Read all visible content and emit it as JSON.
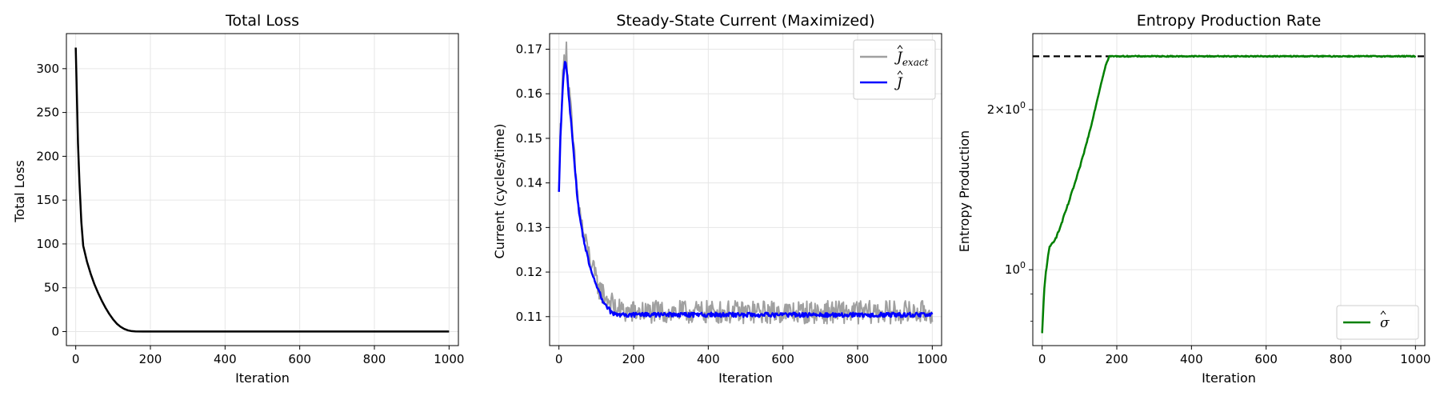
{
  "chart_data": [
    {
      "type": "line",
      "title": "Total Loss",
      "xlabel": "Iteration",
      "ylabel": "Total Loss",
      "xlim": [
        -25,
        1025
      ],
      "ylim": [
        -16,
        340
      ],
      "x_ticks": [
        0,
        200,
        400,
        600,
        800,
        1000
      ],
      "y_ticks": [
        0,
        50,
        100,
        150,
        200,
        250,
        300
      ],
      "grid": true,
      "series": [
        {
          "color": "#000000",
          "x": [
            0,
            3,
            6,
            10,
            15,
            20,
            30,
            40,
            50,
            60,
            70,
            80,
            90,
            100,
            110,
            120,
            130,
            140,
            150,
            160,
            180,
            200,
            300,
            400,
            500,
            600,
            700,
            800,
            900,
            1000
          ],
          "values": [
            324,
            270,
            215,
            170,
            125,
            98,
            80,
            66,
            54,
            44,
            35,
            27,
            20,
            14,
            9,
            5.5,
            3,
            1.4,
            0.5,
            0.2,
            0.1,
            0.05,
            0.05,
            0.05,
            0.05,
            0.05,
            0.05,
            0.05,
            0.05,
            0.05
          ]
        }
      ]
    },
    {
      "type": "line",
      "title": "Steady-State Current (Maximized)",
      "xlabel": "Iteration",
      "ylabel": "Current (cycles/time)",
      "xlim": [
        -25,
        1025
      ],
      "ylim": [
        0.1035,
        0.1735
      ],
      "x_ticks": [
        0,
        200,
        400,
        600,
        800,
        1000
      ],
      "y_ticks": [
        0.11,
        0.12,
        0.13,
        0.14,
        0.15,
        0.16,
        0.17
      ],
      "grid": true,
      "legend_position": "top-right",
      "series": [
        {
          "name_base": "J",
          "name_sub": "exact",
          "color": "#a0a0a0",
          "x": [
            0,
            4,
            8,
            12,
            16,
            20,
            24,
            30,
            40,
            50,
            60,
            70,
            80,
            90,
            100,
            110,
            120,
            130,
            140,
            150,
            160,
            180,
            200,
            250,
            300,
            400,
            500,
            600,
            700,
            800,
            900,
            1000
          ],
          "values": [
            0.138,
            0.152,
            0.16,
            0.166,
            0.168,
            0.171,
            0.163,
            0.158,
            0.147,
            0.137,
            0.131,
            0.127,
            0.124,
            0.121,
            0.118,
            0.116,
            0.115,
            0.114,
            0.113,
            0.112,
            0.1115,
            0.111,
            0.111,
            0.111,
            0.111,
            0.111,
            0.111,
            0.111,
            0.111,
            0.111,
            0.111,
            0.111
          ],
          "noise_amplitude": 0.0026
        },
        {
          "name_base": "J",
          "name_sub": "",
          "color": "#0000ff",
          "x": [
            0,
            4,
            8,
            12,
            16,
            20,
            24,
            30,
            40,
            50,
            60,
            70,
            80,
            90,
            100,
            110,
            120,
            130,
            140,
            150,
            160,
            180,
            200,
            250,
            300,
            400,
            500,
            600,
            700,
            800,
            900,
            1000
          ],
          "values": [
            0.138,
            0.15,
            0.158,
            0.164,
            0.167,
            0.166,
            0.162,
            0.156,
            0.146,
            0.136,
            0.13,
            0.126,
            0.122,
            0.119,
            0.117,
            0.115,
            0.113,
            0.112,
            0.111,
            0.1105,
            0.1104,
            0.1104,
            0.1104,
            0.1104,
            0.1104,
            0.1104,
            0.1104,
            0.1104,
            0.1104,
            0.1104,
            0.1104,
            0.1104
          ],
          "noise_amplitude": 0.0005
        }
      ]
    },
    {
      "type": "line",
      "title": "Entropy Production Rate",
      "xlabel": "Iteration",
      "ylabel": "Entropy Production",
      "yscale": "log",
      "xlim": [
        -25,
        1025
      ],
      "ylim": [
        0.72,
        2.78
      ],
      "x_ticks": [
        0,
        200,
        400,
        600,
        800,
        1000
      ],
      "y_major_ticks": [
        {
          "value": 1,
          "mantissa": "",
          "exponent": "0"
        },
        {
          "value": 2,
          "mantissa": "2",
          "exponent": "0"
        }
      ],
      "y_minor_ticks": [
        0.8,
        0.9,
        3
      ],
      "grid": true,
      "legend_position": "lower-right",
      "reference_line": {
        "y": 2.52,
        "color": "#000000",
        "style": "dashed"
      },
      "series": [
        {
          "name_base": "σ",
          "name_sub": "",
          "color": "#008000",
          "x": [
            0,
            3,
            6,
            10,
            15,
            20,
            30,
            40,
            50,
            60,
            70,
            80,
            90,
            100,
            110,
            120,
            130,
            140,
            150,
            160,
            170,
            180,
            200,
            300,
            400,
            500,
            600,
            700,
            800,
            900,
            1000
          ],
          "values": [
            0.76,
            0.84,
            0.92,
            0.99,
            1.05,
            1.1,
            1.13,
            1.16,
            1.21,
            1.27,
            1.33,
            1.4,
            1.47,
            1.55,
            1.64,
            1.74,
            1.85,
            1.98,
            2.12,
            2.27,
            2.42,
            2.52,
            2.52,
            2.52,
            2.52,
            2.52,
            2.52,
            2.52,
            2.52,
            2.52,
            2.52
          ],
          "noise_amplitude": 0.006
        }
      ]
    }
  ]
}
